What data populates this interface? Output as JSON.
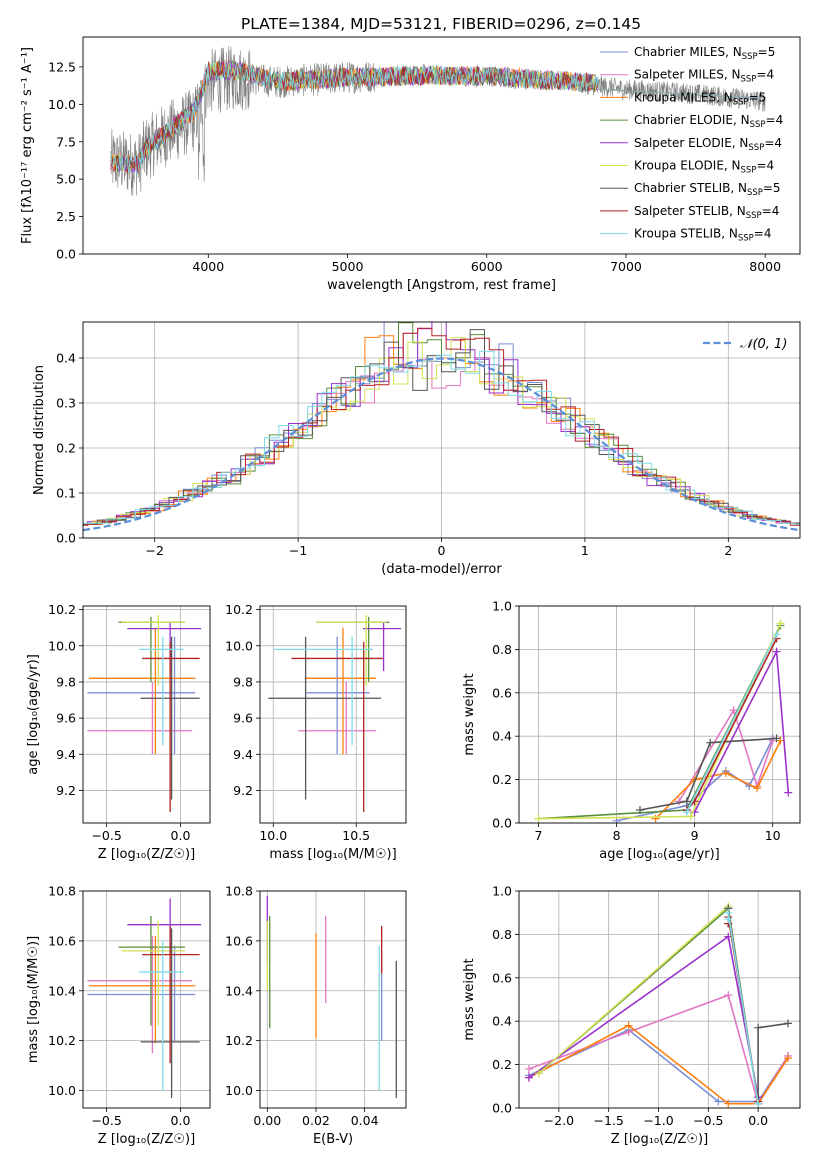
{
  "figure": {
    "title": "PLATE=1384, MJD=53121, FIBERID=0296, z=0.145"
  },
  "chart_data": [
    {
      "id": "spectrum",
      "type": "line",
      "title": "PLATE=1384, MJD=53121, FIBERID=0296, z=0.145",
      "xlabel": "wavelength [Angstrom, rest frame]",
      "ylabel": "Flux [fλ10⁻¹⁷ erg cm⁻² s⁻¹ A⁻¹]",
      "xlim": [
        3100,
        8250
      ],
      "ylim": [
        0,
        14.5
      ],
      "xticks": [
        4000,
        5000,
        6000,
        7000,
        8000
      ],
      "yticks": [
        0.0,
        2.5,
        5.0,
        7.5,
        10.0,
        12.5
      ],
      "yticklabels": [
        "0.0",
        "2.5",
        "5.0",
        "7.5",
        "10.0",
        "12.5"
      ],
      "grid": false,
      "legend_position": "right",
      "data_envelope": {
        "x": [
          3300,
          3500,
          3550,
          3700,
          3900,
          4000,
          4200,
          4500,
          5000,
          5500,
          6000,
          6500,
          7000,
          7500,
          8000
        ],
        "y": [
          6.2,
          6.0,
          7.0,
          8.0,
          9.0,
          11.5,
          11.8,
          11.5,
          11.8,
          12.0,
          11.8,
          11.6,
          11.0,
          10.7,
          10.2
        ]
      },
      "model_envelope": {
        "x": [
          3300,
          3500,
          3550,
          3700,
          3900,
          4000,
          4200,
          4500,
          5000,
          5500,
          6000,
          6500,
          6800
        ],
        "y": [
          6.2,
          5.9,
          7.0,
          8.2,
          9.5,
          12.2,
          12.3,
          11.5,
          11.8,
          11.9,
          11.9,
          11.6,
          11.4
        ]
      }
    },
    {
      "id": "residuals",
      "type": "line",
      "xlabel": "(data-model)/error",
      "ylabel": "Normed distribution",
      "xlim": [
        -2.5,
        2.5
      ],
      "ylim": [
        0,
        0.48
      ],
      "xticks": [
        -2,
        -1,
        0,
        1,
        2
      ],
      "xticklabels": [
        "−2",
        "−1",
        "0",
        "1",
        "2"
      ],
      "yticks": [
        0.0,
        0.1,
        0.2,
        0.3,
        0.4
      ],
      "yticklabels": [
        "0.0",
        "0.1",
        "0.2",
        "0.3",
        "0.4"
      ],
      "grid": true,
      "legend_position": "top-right",
      "gaussian_label": "𝒩(0, 1)"
    },
    {
      "id": "z-age",
      "type": "scatter",
      "xlabel": "Z [log₁₀(Z/Z☉)]",
      "ylabel": "age  [log₁₀(age/yr)]",
      "xlim": [
        -0.66,
        0.2
      ],
      "ylim": [
        9.02,
        10.22
      ],
      "xticks": [
        -0.5,
        0.0
      ],
      "xticklabels": [
        "−0.5",
        "0.0"
      ],
      "yticks": [
        9.2,
        9.4,
        9.6,
        9.8,
        10.0,
        10.2
      ],
      "yticklabels": [
        "9.2",
        "9.4",
        "9.6",
        "9.8",
        "10.0",
        "10.2"
      ],
      "grid": true
    },
    {
      "id": "mass-age",
      "type": "scatter",
      "xlabel": "mass [log₁₀(M/M☉)]",
      "ylabel": "",
      "xlim": [
        9.92,
        10.8
      ],
      "ylim": [
        9.02,
        10.22
      ],
      "xticks": [
        10.0,
        10.5
      ],
      "xticklabels": [
        "10.0",
        "10.5"
      ],
      "yticks": [
        9.2,
        9.4,
        9.6,
        9.8,
        10.0,
        10.2
      ],
      "yticklabels": [
        "9.2",
        "9.4",
        "9.6",
        "9.8",
        "10.0",
        "10.2"
      ],
      "grid": true
    },
    {
      "id": "age-weight",
      "type": "line",
      "xlabel": "age  [log₁₀(age/yr)]",
      "ylabel": "mass weight",
      "xlim": [
        6.75,
        10.35
      ],
      "ylim": [
        0,
        1.0
      ],
      "xticks": [
        7,
        8,
        9,
        10
      ],
      "xticklabels": [
        "7",
        "8",
        "9",
        "10"
      ],
      "yticks": [
        0.0,
        0.2,
        0.4,
        0.6,
        0.8,
        1.0
      ],
      "yticklabels": [
        "0.0",
        "0.2",
        "0.4",
        "0.6",
        "0.8",
        "1.0"
      ],
      "grid": true
    },
    {
      "id": "z-mass",
      "type": "scatter",
      "xlabel": "Z [log₁₀(Z/Z☉)]",
      "ylabel": "mass [log₁₀(M/M☉)]",
      "xlim": [
        -0.66,
        0.2
      ],
      "ylim": [
        9.93,
        10.8
      ],
      "xticks": [
        -0.5,
        0.0
      ],
      "xticklabels": [
        "−0.5",
        "0.0"
      ],
      "yticks": [
        10.0,
        10.2,
        10.4,
        10.6,
        10.8
      ],
      "yticklabels": [
        "10.0",
        "10.2",
        "10.4",
        "10.6",
        "10.8"
      ],
      "grid": true
    },
    {
      "id": "ebv-mass",
      "type": "scatter",
      "xlabel": "E(B-V)",
      "ylabel": "",
      "xlim": [
        -0.003,
        0.057
      ],
      "ylim": [
        9.93,
        10.8
      ],
      "xticks": [
        0.0,
        0.02,
        0.04
      ],
      "xticklabels": [
        "0.00",
        "0.02",
        "0.04"
      ],
      "yticks": [
        10.0,
        10.2,
        10.4,
        10.6,
        10.8
      ],
      "yticklabels": [
        "10.0",
        "10.2",
        "10.4",
        "10.6",
        "10.8"
      ],
      "grid": true
    },
    {
      "id": "z-weight",
      "type": "line",
      "xlabel": "Z [log₁₀(Z/Z☉)]",
      "ylabel": "mass weight",
      "xlim": [
        -2.4,
        0.42
      ],
      "ylim": [
        0,
        1.0
      ],
      "xticks": [
        -2.0,
        -1.5,
        -1.0,
        -0.5,
        0.0
      ],
      "xticklabels": [
        "−2.0",
        "−1.5",
        "−1.0",
        "−0.5",
        "0.0"
      ],
      "yticks": [
        0.0,
        0.2,
        0.4,
        0.6,
        0.8,
        1.0
      ],
      "yticklabels": [
        "0.0",
        "0.2",
        "0.4",
        "0.6",
        "0.8",
        "1.0"
      ],
      "grid": true
    }
  ],
  "models": [
    {
      "name": "Chabrier MILES",
      "nssp": "5",
      "color": "#7b8dd6",
      "z": -0.04,
      "z_lo": -0.63,
      "z_hi": 0.1,
      "age": 9.74,
      "age_lo": 9.4,
      "age_hi": 10.05,
      "mass": 10.385,
      "mass_lo": 10.2,
      "mass_hi": 10.58,
      "ebv": 0.047,
      "ebv_lo": 10.2,
      "ebv_hi": 10.56,
      "sfh_age": [
        8.0,
        8.9,
        9.4,
        9.7,
        10.0
      ],
      "sfh_w": [
        0.01,
        0.08,
        0.24,
        0.17,
        0.39
      ],
      "zw_z": [
        -2.3,
        -1.3,
        -0.4,
        0.0,
        0.3
      ],
      "zw_w": [
        0.15,
        0.36,
        0.03,
        0.03,
        0.24
      ]
    },
    {
      "name": "Salpeter MILES",
      "nssp": "4",
      "color": "#e377c2",
      "z": -0.19,
      "z_lo": -0.63,
      "z_hi": 0.08,
      "age": 9.53,
      "age_lo": 9.4,
      "age_hi": 9.8,
      "mass": 10.44,
      "mass_lo": 10.15,
      "mass_hi": 10.62,
      "ebv": 0.024,
      "ebv_lo": 10.35,
      "ebv_hi": 10.7,
      "sfh_age": [
        8.8,
        9.5,
        9.8,
        10.0
      ],
      "sfh_w": [
        0.1,
        0.52,
        0.17,
        0.38
      ],
      "zw_z": [
        -2.3,
        -1.3,
        -0.3,
        0.0,
        0.3
      ],
      "zw_w": [
        0.18,
        0.35,
        0.52,
        0.02,
        0.24
      ]
    },
    {
      "name": "Kroupa MILES",
      "nssp": "5",
      "color": "#ff7f0e",
      "z": -0.17,
      "z_lo": -0.62,
      "z_hi": 0.1,
      "age": 9.82,
      "age_lo": 9.4,
      "age_hi": 10.1,
      "mass": 10.42,
      "mass_lo": 10.19,
      "mass_hi": 10.62,
      "ebv": 0.02,
      "ebv_lo": 10.21,
      "ebv_hi": 10.63,
      "sfh_age": [
        8.5,
        9.0,
        9.4,
        9.8,
        10.1
      ],
      "sfh_w": [
        0.02,
        0.2,
        0.23,
        0.16,
        0.38
      ],
      "zw_z": [
        -2.3,
        -1.3,
        -0.3,
        0.0,
        0.3
      ],
      "zw_w": [
        0.14,
        0.38,
        0.02,
        0.02,
        0.23
      ]
    },
    {
      "name": "Chabrier ELODIE",
      "nssp": "4",
      "color": "#5a8f3a",
      "z": -0.2,
      "z_lo": -0.42,
      "z_hi": 0.03,
      "age": 10.13,
      "age_lo": 9.8,
      "age_hi": 10.16,
      "mass": 10.575,
      "mass_lo": 10.26,
      "mass_hi": 10.7,
      "ebv": 0.001,
      "ebv_lo": 10.25,
      "ebv_hi": 10.7,
      "sfh_age": [
        7.0,
        8.9,
        10.1
      ],
      "sfh_w": [
        0.02,
        0.06,
        0.91
      ],
      "zw_z": [
        -2.2,
        -0.3,
        0.0
      ],
      "zw_w": [
        0.16,
        0.92,
        0.02
      ]
    },
    {
      "name": "Salpeter ELODIE",
      "nssp": "4",
      "color": "#9932cc",
      "z": -0.07,
      "z_lo": -0.36,
      "z_hi": 0.14,
      "age": 10.095,
      "age_lo": 9.86,
      "age_hi": 10.13,
      "mass": 10.665,
      "mass_lo": 10.54,
      "mass_hi": 10.77,
      "ebv": 0.0,
      "ebv_lo": 10.5,
      "ebv_hi": 10.78,
      "sfh_age": [
        9.0,
        10.05,
        10.2
      ],
      "sfh_w": [
        0.05,
        0.79,
        0.14
      ],
      "zw_z": [
        -2.3,
        -0.3,
        0.0
      ],
      "zw_w": [
        0.14,
        0.79,
        0.05
      ]
    },
    {
      "name": "Kroupa ELODIE",
      "nssp": "4",
      "color": "#d4e157",
      "z": -0.15,
      "z_lo": -0.4,
      "z_hi": 0.03,
      "age": 10.13,
      "age_lo": 9.78,
      "age_hi": 10.17,
      "mass": 10.56,
      "mass_lo": 10.26,
      "mass_hi": 10.68,
      "ebv": 0.0,
      "ebv_lo": 10.4,
      "ebv_hi": 10.68,
      "sfh_age": [
        7.0,
        8.95,
        10.1
      ],
      "sfh_w": [
        0.02,
        0.03,
        0.92
      ],
      "zw_z": [
        -2.2,
        -0.3,
        0.0
      ],
      "zw_w": [
        0.16,
        0.93,
        0.02
      ]
    },
    {
      "name": "Chabrier STELIB",
      "nssp": "5",
      "color": "#555555",
      "z": -0.06,
      "z_lo": -0.27,
      "z_hi": 0.13,
      "age": 9.71,
      "age_lo": 9.15,
      "age_hi": 10.05,
      "mass": 10.195,
      "mass_lo": 9.97,
      "mass_hi": 10.65,
      "ebv": 0.053,
      "ebv_lo": 9.97,
      "ebv_hi": 10.52,
      "sfh_age": [
        8.3,
        8.9,
        9.2,
        10.05
      ],
      "sfh_w": [
        0.06,
        0.1,
        0.37,
        0.39
      ],
      "zw_z": [
        -0.3,
        -0.3,
        0.0,
        0.0,
        0.3
      ],
      "zw_w": [
        0.85,
        0.92,
        0.02,
        0.37,
        0.39
      ]
    },
    {
      "name": "Salpeter STELIB",
      "nssp": "4",
      "color": "#b22222",
      "z": -0.07,
      "z_lo": -0.26,
      "z_hi": 0.13,
      "age": 9.93,
      "age_lo": 9.08,
      "age_hi": 10.02,
      "mass": 10.545,
      "mass_lo": 10.11,
      "mass_hi": 10.66,
      "ebv": 0.047,
      "ebv_lo": 10.47,
      "ebv_hi": 10.66,
      "sfh_age": [
        8.9,
        9.0,
        10.05
      ],
      "sfh_w": [
        0.06,
        0.1,
        0.85
      ],
      "zw_z": [
        -0.3,
        -0.3,
        0.0
      ],
      "zw_w": [
        0.85,
        0.88,
        0.03
      ]
    },
    {
      "name": "Kroupa STELIB",
      "nssp": "4",
      "color": "#7fdbe8",
      "z": -0.12,
      "z_lo": -0.28,
      "z_hi": 0.02,
      "age": 9.98,
      "age_lo": 9.45,
      "age_hi": 10.05,
      "mass": 10.475,
      "mass_lo": 10.0,
      "mass_hi": 10.6,
      "ebv": 0.046,
      "ebv_lo": 10.0,
      "ebv_hi": 10.58,
      "sfh_age": [
        8.9,
        10.05
      ],
      "sfh_w": [
        0.05,
        0.87
      ],
      "zw_z": [
        -0.3,
        -0.3,
        0.0
      ],
      "zw_w": [
        0.87,
        0.9,
        0.02
      ]
    }
  ]
}
